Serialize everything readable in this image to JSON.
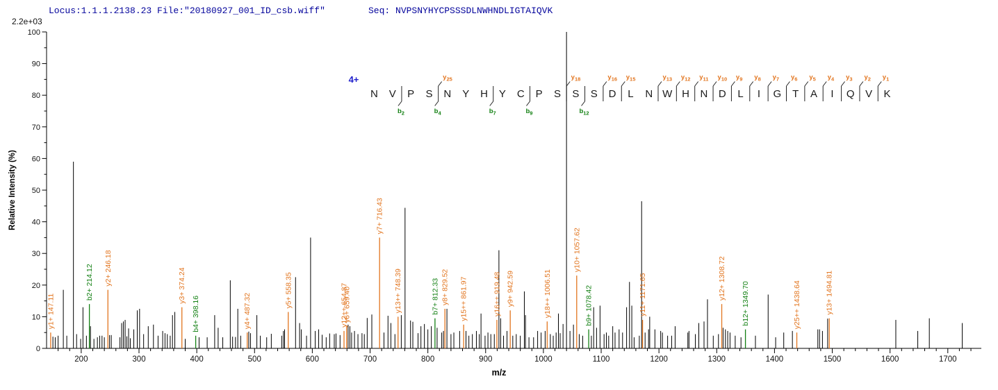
{
  "header": {
    "locus_file": "Locus:1.1.1.2138.23 File:\"20180927_001_ID_csb.wiff\"",
    "seq_label": "Seq:",
    "sequence": "NVPSNYHYCPSSSDLNWHNDLIGTAIQVK",
    "max_intensity": "2.2e+03"
  },
  "precursor_charge": "4+",
  "colors": {
    "y_ion": "#e2751f",
    "b_ion": "#138013",
    "peak": "#000000",
    "header_text": "#04049c",
    "charge_label": "#2020cc",
    "sequence_letter": "#1a1a1a",
    "axis": "#000000"
  },
  "sequence_overlay": {
    "residues": [
      {
        "aa": "N"
      },
      {
        "aa": "V",
        "b": "b2"
      },
      {
        "aa": "P"
      },
      {
        "aa": "S",
        "y": "y25",
        "b": "b4"
      },
      {
        "aa": "N"
      },
      {
        "aa": "Y"
      },
      {
        "aa": "H",
        "b": "b7"
      },
      {
        "aa": "Y"
      },
      {
        "aa": "C",
        "b": "b9"
      },
      {
        "aa": "P"
      },
      {
        "aa": "S",
        "y": "y18"
      },
      {
        "aa": "S",
        "b": "b12"
      },
      {
        "aa": "S",
        "y": "y16"
      },
      {
        "aa": "D",
        "y": "y15"
      },
      {
        "aa": "L"
      },
      {
        "aa": "N",
        "y": "y13"
      },
      {
        "aa": "W",
        "y": "y12"
      },
      {
        "aa": "H",
        "y": "y11"
      },
      {
        "aa": "N",
        "y": "y10"
      },
      {
        "aa": "D",
        "y": "y9"
      },
      {
        "aa": "L",
        "y": "y8"
      },
      {
        "aa": "I",
        "y": "y7"
      },
      {
        "aa": "G",
        "y": "y6"
      },
      {
        "aa": "T",
        "y": "y5"
      },
      {
        "aa": "A",
        "y": "y4"
      },
      {
        "aa": "I",
        "y": "y3"
      },
      {
        "aa": "Q",
        "y": "y2"
      },
      {
        "aa": "V",
        "y": "y1"
      },
      {
        "aa": "K"
      }
    ]
  },
  "chart_data": {
    "type": "bar",
    "title": "",
    "xlabel": "m/z",
    "ylabel": "Relative  Intensity (%)",
    "xlim": [
      140,
      1758
    ],
    "ylim": [
      0,
      100
    ],
    "x_ticks": [
      200,
      300,
      400,
      500,
      600,
      700,
      800,
      900,
      1000,
      1100,
      1200,
      1300,
      1400,
      1500,
      1600,
      1700
    ],
    "x_minor_step": 20,
    "y_ticks": [
      0,
      10,
      20,
      30,
      40,
      50,
      60,
      70,
      80,
      90,
      100
    ],
    "y_minor_step": 5,
    "grid": false,
    "legend": "none",
    "max_intensity_counts": "2.2e+03",
    "annotated_peaks": [
      {
        "label": "y1+ 147.11",
        "ion": "y",
        "mz": 147.11,
        "intensity": 5
      },
      {
        "label": "b2+ 214.12",
        "ion": "b",
        "mz": 214.12,
        "intensity": 14
      },
      {
        "label": "y2+ 246.18",
        "ion": "y",
        "mz": 246.18,
        "intensity": 18.5
      },
      {
        "label": "y3+ 374.24",
        "ion": "y",
        "mz": 374.24,
        "intensity": 13
      },
      {
        "label": "b4+ 398.16",
        "ion": "b",
        "mz": 398.16,
        "intensity": 4
      },
      {
        "label": "y4+ 487.32",
        "ion": "y",
        "mz": 487.32,
        "intensity": 5
      },
      {
        "label": "y5+ 558.35",
        "ion": "y",
        "mz": 558.35,
        "intensity": 11.5
      },
      {
        "label": "y12++ 654.87",
        "ion": "y",
        "mz": 654.87,
        "intensity": 5.5
      },
      {
        "label": "y6+ 659.40",
        "ion": "y",
        "mz": 659.4,
        "intensity": 7
      },
      {
        "label": "y7+ 716.43",
        "ion": "y",
        "mz": 716.43,
        "intensity": 35
      },
      {
        "label": "y13++ 748.39",
        "ion": "y",
        "mz": 748.39,
        "intensity": 10
      },
      {
        "label": "b7+ 812.33",
        "ion": "b",
        "mz": 812.33,
        "intensity": 9.5
      },
      {
        "label": "y8+ 829.52",
        "ion": "y",
        "mz": 829.52,
        "intensity": 12.5
      },
      {
        "label": "y15++ 861.97",
        "ion": "y",
        "mz": 861.97,
        "intensity": 7.5
      },
      {
        "label": "y16++ 919.48",
        "ion": "y",
        "mz": 919.48,
        "intensity": 9
      },
      {
        "label": "y9+ 942.59",
        "ion": "y",
        "mz": 942.59,
        "intensity": 12
      },
      {
        "label": "y18++ 1006.51",
        "ion": "y",
        "mz": 1006.51,
        "intensity": 8.5
      },
      {
        "label": "y10+ 1057.62",
        "ion": "y",
        "mz": 1057.62,
        "intensity": 23
      },
      {
        "label": "b9+ 1078.42",
        "ion": "b",
        "mz": 1078.42,
        "intensity": 6
      },
      {
        "label": "y11+ 1171.65",
        "ion": "y",
        "mz": 1171.65,
        "intensity": 9
      },
      {
        "label": "y12+ 1308.72",
        "ion": "y",
        "mz": 1308.72,
        "intensity": 14
      },
      {
        "label": "b12+ 1349.70",
        "ion": "b",
        "mz": 1349.7,
        "intensity": 6
      },
      {
        "label": "y25++ 1438.64",
        "ion": "y",
        "mz": 1438.64,
        "intensity": 5
      },
      {
        "label": "y13+ 1494.81",
        "ion": "y",
        "mz": 1494.81,
        "intensity": 9.5
      }
    ],
    "unannotated_peaks": [
      [
        151,
        3.7
      ],
      [
        155,
        3.5
      ],
      [
        160,
        4
      ],
      [
        169,
        18.5
      ],
      [
        175,
        4
      ],
      [
        186.5,
        59
      ],
      [
        192,
        4.5
      ],
      [
        199,
        3
      ],
      [
        203,
        13
      ],
      [
        209,
        4
      ],
      [
        216,
        7
      ],
      [
        222,
        3
      ],
      [
        228,
        3.5
      ],
      [
        232,
        4
      ],
      [
        236,
        4
      ],
      [
        240,
        3.5
      ],
      [
        249,
        4.2
      ],
      [
        252,
        4.2
      ],
      [
        267,
        3.5
      ],
      [
        270,
        8
      ],
      [
        273,
        8.5
      ],
      [
        276,
        9
      ],
      [
        279,
        3.8
      ],
      [
        282,
        6.3
      ],
      [
        285,
        3.2
      ],
      [
        291,
        6
      ],
      [
        297,
        12
      ],
      [
        301,
        12.5
      ],
      [
        308,
        4.5
      ],
      [
        316,
        7
      ],
      [
        325,
        7.5
      ],
      [
        333,
        4
      ],
      [
        341,
        5.5
      ],
      [
        345,
        4.8
      ],
      [
        349,
        4.5
      ],
      [
        354,
        4
      ],
      [
        358,
        10.5
      ],
      [
        362,
        11.5
      ],
      [
        380,
        3
      ],
      [
        404,
        3.5
      ],
      [
        418,
        3.5
      ],
      [
        431,
        10.5
      ],
      [
        437,
        6.5
      ],
      [
        445,
        3.5
      ],
      [
        458,
        21.5
      ],
      [
        462,
        3.7
      ],
      [
        467,
        3.6
      ],
      [
        471,
        12.5
      ],
      [
        476,
        4
      ],
      [
        490,
        5.3
      ],
      [
        493,
        4.8
      ],
      [
        504,
        10.5
      ],
      [
        510,
        4
      ],
      [
        521,
        3.5
      ],
      [
        529,
        4.6
      ],
      [
        547,
        4
      ],
      [
        550,
        5.5
      ],
      [
        552,
        6
      ],
      [
        571,
        22.5
      ],
      [
        578,
        8
      ],
      [
        581,
        6
      ],
      [
        590,
        4
      ],
      [
        597,
        35
      ],
      [
        605,
        5.5
      ],
      [
        611,
        6
      ],
      [
        617,
        4.3
      ],
      [
        624,
        3.5
      ],
      [
        630,
        4.7
      ],
      [
        638,
        4.5
      ],
      [
        641,
        4.7
      ],
      [
        648,
        4.2
      ],
      [
        662,
        7.5
      ],
      [
        665,
        7
      ],
      [
        668,
        5
      ],
      [
        673,
        5.5
      ],
      [
        679,
        4.5
      ],
      [
        686,
        4.8
      ],
      [
        690,
        4.5
      ],
      [
        695,
        9.6
      ],
      [
        703,
        10.7
      ],
      [
        724,
        5
      ],
      [
        731,
        10.3
      ],
      [
        736,
        8
      ],
      [
        743,
        4.5
      ],
      [
        754,
        10.5
      ],
      [
        760.5,
        44.4
      ],
      [
        770,
        8.8
      ],
      [
        774,
        8.4
      ],
      [
        783,
        4.8
      ],
      [
        788,
        7
      ],
      [
        794,
        7.7
      ],
      [
        800,
        6
      ],
      [
        806,
        7
      ],
      [
        816,
        6.5
      ],
      [
        824,
        5
      ],
      [
        827,
        5.5
      ],
      [
        833,
        12.5
      ],
      [
        840,
        4.5
      ],
      [
        845,
        5
      ],
      [
        855,
        5.5
      ],
      [
        866,
        5.5
      ],
      [
        871,
        4
      ],
      [
        877,
        4.5
      ],
      [
        884,
        5.5
      ],
      [
        889,
        4.5
      ],
      [
        892,
        11
      ],
      [
        899,
        4
      ],
      [
        904,
        5
      ],
      [
        909,
        4.5
      ],
      [
        915,
        4.5
      ],
      [
        923,
        31
      ],
      [
        926,
        9.5
      ],
      [
        931,
        4
      ],
      [
        937,
        5.5
      ],
      [
        947,
        4
      ],
      [
        953,
        4.5
      ],
      [
        960,
        4
      ],
      [
        967,
        18
      ],
      [
        969,
        10.5
      ],
      [
        975,
        3.5
      ],
      [
        983,
        3.5
      ],
      [
        990,
        5.5
      ],
      [
        996,
        5
      ],
      [
        1003,
        5.5
      ],
      [
        1012,
        4.5
      ],
      [
        1017,
        4
      ],
      [
        1022,
        5
      ],
      [
        1026,
        11
      ],
      [
        1029,
        4.8
      ],
      [
        1034,
        7.7
      ],
      [
        1040,
        100
      ],
      [
        1046,
        5.5
      ],
      [
        1052,
        7.5
      ],
      [
        1062,
        4.5
      ],
      [
        1068,
        4
      ],
      [
        1083,
        4
      ],
      [
        1087,
        13
      ],
      [
        1092,
        6.5
      ],
      [
        1098,
        13.5
      ],
      [
        1105,
        4.5
      ],
      [
        1109,
        5
      ],
      [
        1113,
        4
      ],
      [
        1120,
        7
      ],
      [
        1124,
        5
      ],
      [
        1131,
        6
      ],
      [
        1137,
        5
      ],
      [
        1144,
        13
      ],
      [
        1149,
        21
      ],
      [
        1153,
        13.5
      ],
      [
        1157,
        3.5
      ],
      [
        1166,
        4
      ],
      [
        1170,
        46.5
      ],
      [
        1176,
        5
      ],
      [
        1182,
        6
      ],
      [
        1184,
        10
      ],
      [
        1193,
        6
      ],
      [
        1203,
        5.5
      ],
      [
        1206,
        5
      ],
      [
        1215,
        4
      ],
      [
        1222,
        4
      ],
      [
        1228,
        7
      ],
      [
        1250,
        5
      ],
      [
        1252,
        5.5
      ],
      [
        1263,
        4.5
      ],
      [
        1269,
        8
      ],
      [
        1278,
        8.5
      ],
      [
        1284,
        15.5
      ],
      [
        1294,
        4
      ],
      [
        1303,
        4.5
      ],
      [
        1311,
        6.5
      ],
      [
        1315,
        6
      ],
      [
        1319,
        5.5
      ],
      [
        1323,
        5
      ],
      [
        1332,
        4
      ],
      [
        1342,
        3.5
      ],
      [
        1367,
        4
      ],
      [
        1389,
        17
      ],
      [
        1402,
        3.5
      ],
      [
        1416,
        5
      ],
      [
        1431,
        5.5
      ],
      [
        1475,
        6
      ],
      [
        1478,
        6
      ],
      [
        1483,
        5.5
      ],
      [
        1492,
        9.4
      ],
      [
        1610,
        9
      ],
      [
        1648,
        5.5
      ],
      [
        1668,
        9.5
      ],
      [
        1725,
        8
      ]
    ]
  }
}
